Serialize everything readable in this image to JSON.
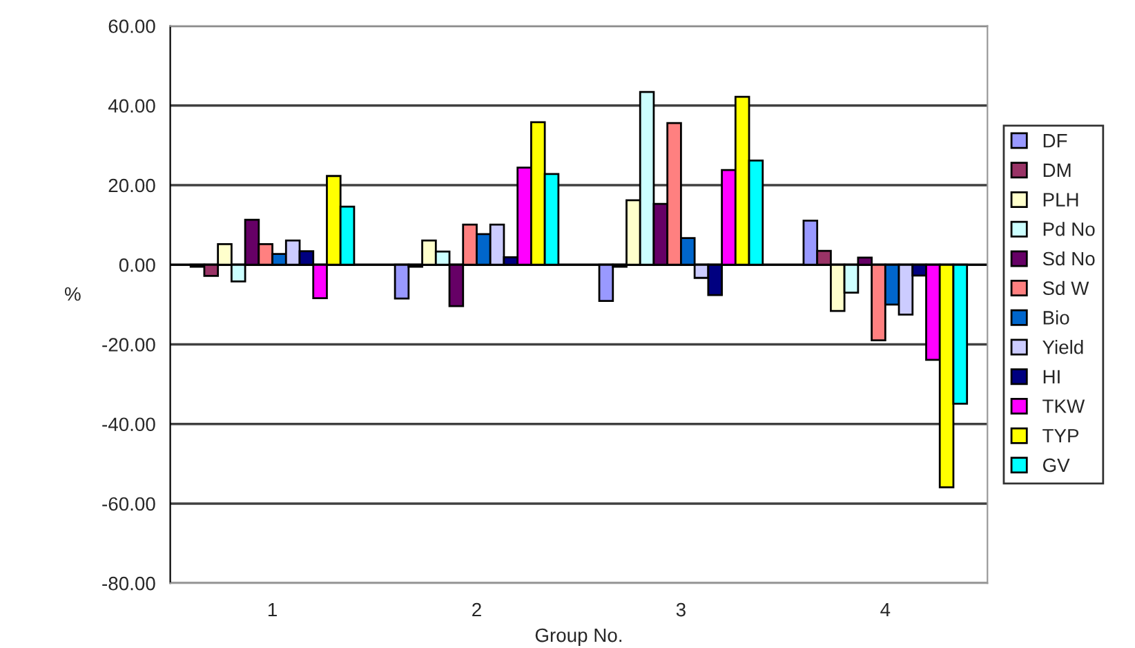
{
  "chart_data": {
    "type": "bar",
    "xlabel": "Group No.",
    "ylabel": "%",
    "categories": [
      "1",
      "2",
      "3",
      "4"
    ],
    "series": [
      {
        "name": "DF",
        "color": "#9999ff",
        "values": [
          -0.5,
          -8.5,
          -9.1,
          11.1
        ]
      },
      {
        "name": "DM",
        "color": "#993366",
        "values": [
          -2.8,
          -0.5,
          -0.5,
          3.5
        ]
      },
      {
        "name": "PLH",
        "color": "#ffffcc",
        "values": [
          5.2,
          6.1,
          16.2,
          -11.6
        ]
      },
      {
        "name": "Pd No",
        "color": "#ccffff",
        "values": [
          -4.2,
          3.3,
          43.4,
          -7.0
        ]
      },
      {
        "name": "Sd No",
        "color": "#660066",
        "values": [
          11.3,
          -10.4,
          15.3,
          1.8
        ]
      },
      {
        "name": "Sd W",
        "color": "#ff8080",
        "values": [
          5.2,
          10.1,
          35.6,
          -19.0
        ]
      },
      {
        "name": "Bio",
        "color": "#0066cc",
        "values": [
          2.7,
          7.7,
          6.7,
          -10.0
        ]
      },
      {
        "name": "Yield",
        "color": "#ccccff",
        "values": [
          6.1,
          10.1,
          -3.3,
          -12.5
        ]
      },
      {
        "name": "HI",
        "color": "#000080",
        "values": [
          3.4,
          1.9,
          -7.6,
          -2.7
        ]
      },
      {
        "name": "TKW",
        "color": "#ff00ff",
        "values": [
          -8.4,
          24.4,
          23.8,
          -23.9
        ]
      },
      {
        "name": "TYP",
        "color": "#ffff00",
        "values": [
          22.3,
          35.8,
          42.2,
          -55.9
        ]
      },
      {
        "name": "GV",
        "color": "#00ffff",
        "values": [
          14.6,
          22.8,
          26.2,
          -34.9
        ]
      }
    ],
    "ylim": [
      -80,
      60
    ],
    "yticks": [
      {
        "value": -80,
        "label": "-80.00"
      },
      {
        "value": -60,
        "label": "-60.00"
      },
      {
        "value": -40,
        "label": "-40.00"
      },
      {
        "value": -20,
        "label": "-20.00"
      },
      {
        "value": 0,
        "label": "0.00"
      },
      {
        "value": 20,
        "label": "20.00"
      },
      {
        "value": 40,
        "label": "40.00"
      },
      {
        "value": 60,
        "label": "60.00"
      }
    ],
    "grid": "y",
    "legend": "right"
  }
}
